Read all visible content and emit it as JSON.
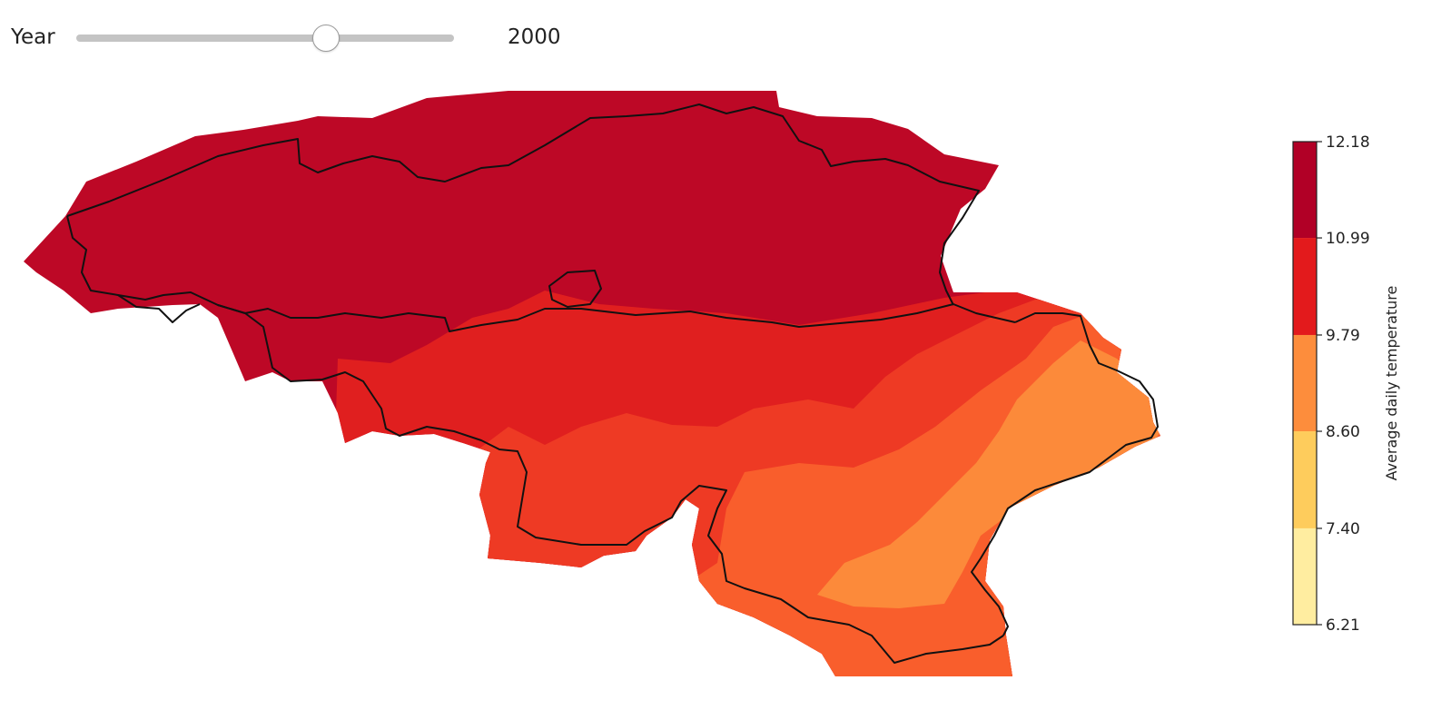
{
  "controls": {
    "label": "Year",
    "value": "2000",
    "slider_fraction": 0.66
  },
  "map": {
    "country": "Belgium",
    "fill_colors": {
      "band_12": "#bd0826",
      "band_11": "#e01f1f",
      "band_11b": "#ee3a24",
      "band_10": "#f95e2c",
      "band_9": "#fc8a3a",
      "border": "#111111"
    }
  },
  "chart_data": {
    "type": "heatmap",
    "title": "",
    "colorbar": {
      "label": "Average daily temperature",
      "ticks": [
        "12.18",
        "10.99",
        "9.79",
        "8.60",
        "7.40",
        "6.21"
      ],
      "range": [
        6.21,
        12.18
      ],
      "bands": [
        {
          "from": 10.99,
          "to": 12.18,
          "color": "#b10026"
        },
        {
          "from": 9.79,
          "to": 10.99,
          "color": "#e31a1c"
        },
        {
          "from": 8.6,
          "to": 9.79,
          "color": "#fd8d3c"
        },
        {
          "from": 7.4,
          "to": 8.6,
          "color": "#fecc5c"
        },
        {
          "from": 6.21,
          "to": 7.4,
          "color": "#ffeda0"
        }
      ]
    }
  }
}
